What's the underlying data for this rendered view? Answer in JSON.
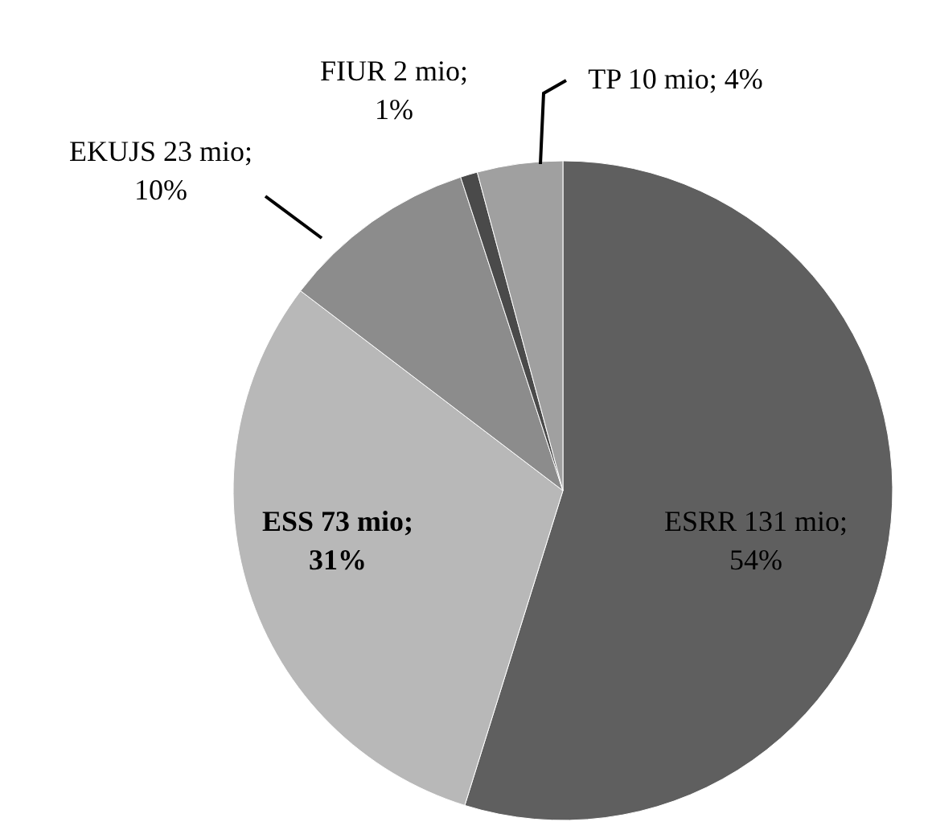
{
  "chart_data": {
    "type": "pie",
    "categories": [
      "ESRR",
      "ESS",
      "EKUJS",
      "FIUR",
      "TP"
    ],
    "values": [
      131,
      73,
      23,
      2,
      10
    ],
    "value_labels": [
      "131 mio; 54%",
      "73 mio; 31%",
      "23 mio; 10%",
      "2 mio; 1%",
      "10 mio; 4%"
    ],
    "colors": [
      "#5f5f5f",
      "#b8b8b8",
      "#8c8c8c",
      "#4a4a4a",
      "#a0a0a0"
    ]
  }
}
